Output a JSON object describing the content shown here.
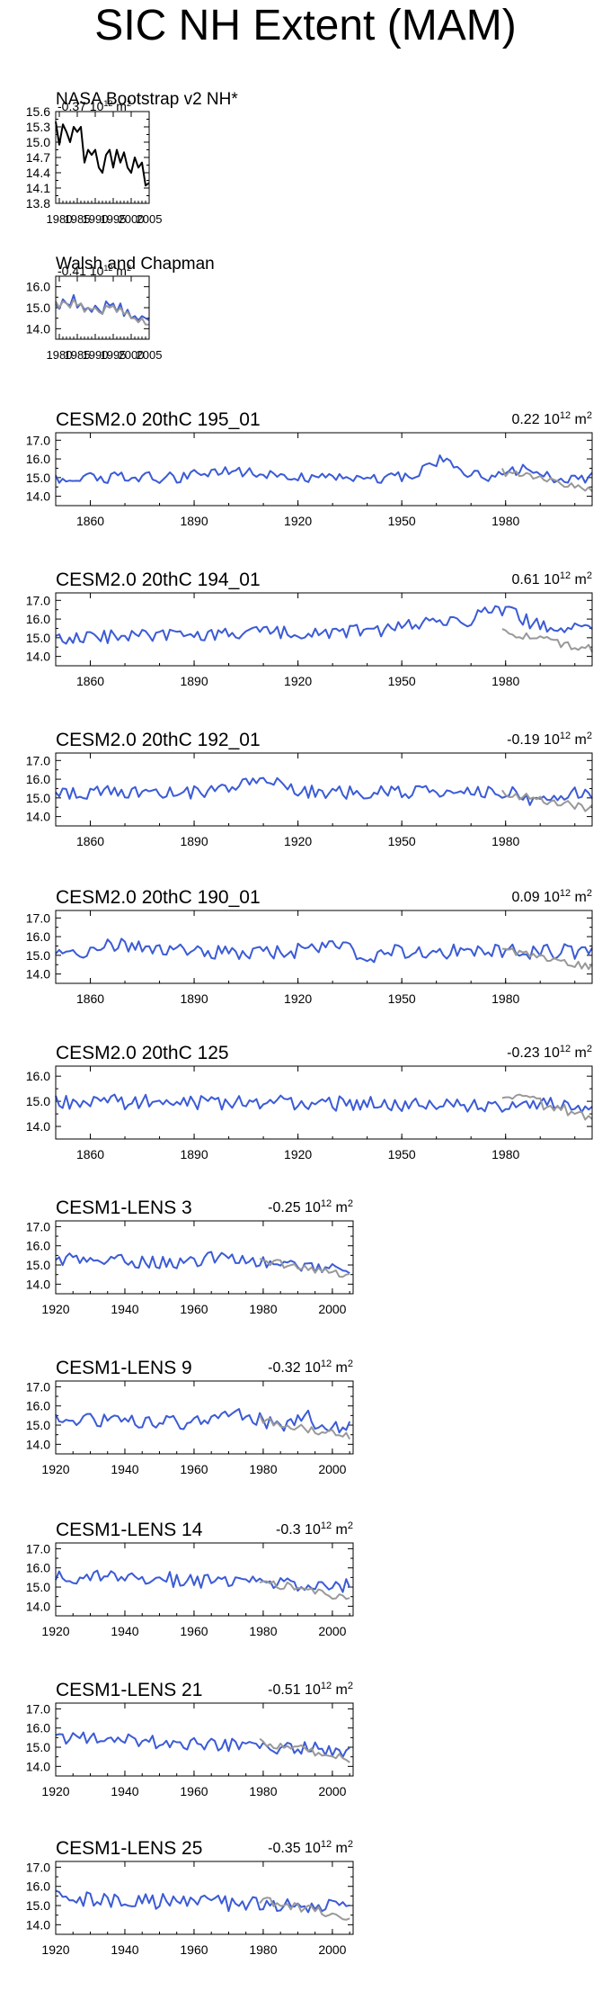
{
  "page_title": "SIC NH Extent (MAM)",
  "colors": {
    "model": "#3b5bd6",
    "obs": "#999999",
    "obs_only": "#000000",
    "frame": "#000000"
  },
  "units_label": "10^12 m^2",
  "chart_data": [
    {
      "id": "nasa",
      "type": "line",
      "title": "NASA Bootstrap v2 NH*",
      "trend": "-0.37 10^12 m^2",
      "trend_value": "-0.37",
      "xlim": [
        1979,
        2005
      ],
      "ylim": [
        13.8,
        15.6
      ],
      "yticks": [
        13.8,
        14.1,
        14.4,
        14.7,
        15.0,
        15.3,
        15.6
      ],
      "xticks": [
        1980,
        1985,
        1990,
        1995,
        2000,
        2005
      ],
      "series": [
        {
          "name": "NASA Bootstrap v2 NH*",
          "style": "obs_only",
          "x0": 1979,
          "values": [
            15.4,
            14.95,
            15.35,
            15.2,
            15.0,
            15.3,
            15.2,
            15.3,
            14.6,
            14.85,
            14.75,
            14.85,
            14.5,
            14.4,
            14.75,
            14.85,
            14.5,
            14.85,
            14.6,
            14.8,
            14.5,
            14.4,
            14.7,
            14.5,
            14.6,
            14.15,
            14.2
          ]
        }
      ]
    },
    {
      "id": "walsh",
      "type": "line",
      "title": "Walsh and Chapman",
      "trend": "-0.41 10^12 m^2",
      "trend_value": "-0.41",
      "xlim": [
        1979,
        2005
      ],
      "ylim": [
        13.5,
        16.5
      ],
      "yticks": [
        14.0,
        15.0,
        16.0
      ],
      "xticks": [
        1980,
        1985,
        1990,
        1995,
        2000,
        2005
      ],
      "series": [
        {
          "name": "Walsh and Chapman",
          "style": "model",
          "x0": 1979,
          "values": [
            15.2,
            14.95,
            15.4,
            15.2,
            15.1,
            15.6,
            15.0,
            15.2,
            14.9,
            15.0,
            14.8,
            15.1,
            14.9,
            14.7,
            15.3,
            15.1,
            15.2,
            14.8,
            15.2,
            14.6,
            14.9,
            14.5,
            14.6,
            14.4,
            14.6,
            14.5,
            14.4
          ]
        },
        {
          "name": "observations",
          "style": "obs",
          "x0": 1979,
          "values": [
            15.3,
            15.0,
            15.3,
            15.2,
            15.0,
            15.4,
            15.1,
            15.2,
            14.8,
            15.0,
            14.9,
            15.0,
            14.8,
            14.7,
            15.1,
            15.0,
            15.1,
            14.8,
            15.0,
            14.7,
            14.8,
            14.5,
            14.5,
            14.3,
            14.5,
            14.2,
            14.2
          ]
        }
      ]
    },
    {
      "id": "c195",
      "type": "line",
      "title": "CESM2.0 20thC 195_01",
      "trend": "0.22 10^12 m^2",
      "trend_value": "0.22",
      "xlim": [
        1850,
        2005
      ],
      "ylim": [
        13.5,
        17.4
      ],
      "yticks": [
        14.0,
        15.0,
        16.0,
        17.0
      ],
      "xticks": [
        1860,
        1890,
        1920,
        1950,
        1980
      ],
      "series": [
        {
          "name": "CESM2.0 20thC 195_01",
          "style": "model",
          "gen": {
            "seed": 195,
            "n": 156,
            "x0": 1850,
            "base": 15.0,
            "amp": 0.3,
            "bumps": [
              [
                1900,
                0.3,
                10
              ],
              [
                1962,
                1.0,
                6
              ],
              [
                1985,
                0.4,
                6
              ]
            ],
            "trend": 0
          }
        },
        {
          "name": "observations",
          "style": "obs",
          "gen": {
            "seed": 9195,
            "n": 27,
            "x0": 1979,
            "base": 15.3,
            "amp": 0.22,
            "bumps": [],
            "trend": -0.035
          }
        }
      ]
    },
    {
      "id": "c194",
      "type": "line",
      "title": "CESM2.0 20thC 194_01",
      "trend": "0.61 10^12 m^2",
      "trend_value": "0.61",
      "xlim": [
        1850,
        2005
      ],
      "ylim": [
        13.5,
        17.4
      ],
      "yticks": [
        14.0,
        15.0,
        16.0,
        17.0
      ],
      "xticks": [
        1860,
        1890,
        1920,
        1950,
        1980
      ],
      "series": [
        {
          "name": "CESM2.0 20thC 194_01",
          "style": "model",
          "gen": {
            "seed": 194,
            "n": 156,
            "x0": 1850,
            "base": 15.0,
            "amp": 0.35,
            "bumps": [
              [
                1960,
                0.4,
                10
              ],
              [
                1978,
                1.0,
                8
              ]
            ],
            "trend": 0.004
          }
        },
        {
          "name": "observations",
          "style": "obs",
          "gen": {
            "seed": 9194,
            "n": 27,
            "x0": 1979,
            "base": 15.3,
            "amp": 0.22,
            "bumps": [],
            "trend": -0.035
          }
        }
      ]
    },
    {
      "id": "c192",
      "type": "line",
      "title": "CESM2.0 20thC 192_01",
      "trend": "-0.19 10^12 m^2",
      "trend_value": "-0.19",
      "xlim": [
        1850,
        2005
      ],
      "ylim": [
        13.5,
        17.4
      ],
      "yticks": [
        14.0,
        15.0,
        16.0,
        17.0
      ],
      "xticks": [
        1860,
        1890,
        1920,
        1950,
        1980
      ],
      "series": [
        {
          "name": "CESM2.0 20thC 192_01",
          "style": "model",
          "gen": {
            "seed": 192,
            "n": 156,
            "x0": 1850,
            "base": 15.3,
            "amp": 0.35,
            "bumps": [
              [
                1910,
                0.6,
                8
              ],
              [
                1990,
                -0.5,
                5
              ]
            ],
            "trend": 0
          }
        },
        {
          "name": "observations",
          "style": "obs",
          "gen": {
            "seed": 9192,
            "n": 27,
            "x0": 1979,
            "base": 15.3,
            "amp": 0.22,
            "bumps": [],
            "trend": -0.035
          }
        }
      ]
    },
    {
      "id": "c190",
      "type": "line",
      "title": "CESM2.0 20thC 190_01",
      "trend": "0.09 10^12 m^2",
      "trend_value": "0.09",
      "xlim": [
        1850,
        2005
      ],
      "ylim": [
        13.5,
        17.4
      ],
      "yticks": [
        14.0,
        15.0,
        16.0,
        17.0
      ],
      "xticks": [
        1860,
        1890,
        1920,
        1950,
        1980
      ],
      "series": [
        {
          "name": "CESM2.0 20thC 190_01",
          "style": "model",
          "gen": {
            "seed": 190,
            "n": 156,
            "x0": 1850,
            "base": 15.2,
            "amp": 0.4,
            "bumps": [
              [
                1870,
                0.4,
                8
              ],
              [
                1930,
                0.3,
                8
              ],
              [
                1940,
                -0.5,
                5
              ]
            ],
            "trend": 0
          }
        },
        {
          "name": "observations",
          "style": "obs",
          "gen": {
            "seed": 9190,
            "n": 27,
            "x0": 1979,
            "base": 15.3,
            "amp": 0.22,
            "bumps": [],
            "trend": -0.035
          }
        }
      ]
    },
    {
      "id": "c125",
      "type": "line",
      "title": "CESM2.0 20thC 125",
      "trend": "-0.23 10^12 m^2",
      "trend_value": "-0.23",
      "xlim": [
        1850,
        2005
      ],
      "ylim": [
        13.5,
        16.4
      ],
      "yticks": [
        14.0,
        15.0,
        16.0
      ],
      "xticks": [
        1860,
        1890,
        1920,
        1950,
        1980
      ],
      "series": [
        {
          "name": "CESM2.0 20thC 125",
          "style": "model",
          "gen": {
            "seed": 125,
            "n": 156,
            "x0": 1850,
            "base": 15.0,
            "amp": 0.3,
            "bumps": [],
            "trend": -0.001
          }
        },
        {
          "name": "observations",
          "style": "obs",
          "gen": {
            "seed": 9125,
            "n": 27,
            "x0": 1979,
            "base": 15.3,
            "amp": 0.22,
            "bumps": [],
            "trend": -0.035
          }
        }
      ]
    },
    {
      "id": "l3",
      "type": "line",
      "title": "CESM1-LENS 3",
      "trend": "-0.25 10^12 m^2",
      "trend_value": "-0.25",
      "xlim": [
        1920,
        2006
      ],
      "ylim": [
        13.5,
        17.3
      ],
      "yticks": [
        14.0,
        15.0,
        16.0,
        17.0
      ],
      "xticks": [
        1920,
        1940,
        1960,
        1980,
        2000
      ],
      "series": [
        {
          "name": "CESM1-LENS 3",
          "style": "model",
          "gen": {
            "seed": 3,
            "n": 86,
            "x0": 1920,
            "base": 15.3,
            "amp": 0.35,
            "bumps": [
              [
                1970,
                0.4,
                8
              ]
            ],
            "trend": -0.005
          }
        },
        {
          "name": "observations",
          "style": "obs",
          "gen": {
            "seed": 903,
            "n": 27,
            "x0": 1979,
            "base": 15.3,
            "amp": 0.22,
            "bumps": [],
            "trend": -0.035
          }
        }
      ]
    },
    {
      "id": "l9",
      "type": "line",
      "title": "CESM1-LENS 9",
      "trend": "-0.32 10^12 m^2",
      "trend_value": "-0.32",
      "xlim": [
        1920,
        2006
      ],
      "ylim": [
        13.5,
        17.3
      ],
      "yticks": [
        14.0,
        15.0,
        16.0,
        17.0
      ],
      "xticks": [
        1920,
        1940,
        1960,
        1980,
        2000
      ],
      "series": [
        {
          "name": "CESM1-LENS 9",
          "style": "model",
          "gen": {
            "seed": 9,
            "n": 86,
            "x0": 1920,
            "base": 15.3,
            "amp": 0.35,
            "bumps": [
              [
                1972,
                0.6,
                8
              ],
              [
                1992,
                0.6,
                3
              ]
            ],
            "trend": -0.005
          }
        },
        {
          "name": "observations",
          "style": "obs",
          "gen": {
            "seed": 909,
            "n": 27,
            "x0": 1979,
            "base": 15.3,
            "amp": 0.22,
            "bumps": [],
            "trend": -0.035
          }
        }
      ]
    },
    {
      "id": "l14",
      "type": "line",
      "title": "CESM1-LENS 14",
      "trend": "-0.3 10^12 m^2",
      "trend_value": "-0.3",
      "xlim": [
        1920,
        2006
      ],
      "ylim": [
        13.5,
        17.3
      ],
      "yticks": [
        14.0,
        15.0,
        16.0,
        17.0
      ],
      "xticks": [
        1920,
        1940,
        1960,
        1980,
        2000
      ],
      "series": [
        {
          "name": "CESM1-LENS 14",
          "style": "model",
          "gen": {
            "seed": 14,
            "n": 86,
            "x0": 1920,
            "base": 15.6,
            "amp": 0.4,
            "bumps": [],
            "trend": -0.006
          }
        },
        {
          "name": "observations",
          "style": "obs",
          "gen": {
            "seed": 914,
            "n": 27,
            "x0": 1979,
            "base": 15.3,
            "amp": 0.22,
            "bumps": [],
            "trend": -0.035
          }
        }
      ]
    },
    {
      "id": "l21",
      "type": "line",
      "title": "CESM1-LENS 21",
      "trend": "-0.51 10^12 m^2",
      "trend_value": "-0.51",
      "xlim": [
        1920,
        2006
      ],
      "ylim": [
        13.5,
        17.3
      ],
      "yticks": [
        14.0,
        15.0,
        16.0,
        17.0
      ],
      "xticks": [
        1920,
        1940,
        1960,
        1980,
        2000
      ],
      "series": [
        {
          "name": "CESM1-LENS 21",
          "style": "model",
          "gen": {
            "seed": 21,
            "n": 86,
            "x0": 1920,
            "base": 15.5,
            "amp": 0.35,
            "bumps": [],
            "trend": -0.008
          }
        },
        {
          "name": "observations",
          "style": "obs",
          "gen": {
            "seed": 921,
            "n": 27,
            "x0": 1979,
            "base": 15.3,
            "amp": 0.22,
            "bumps": [],
            "trend": -0.035
          }
        }
      ]
    },
    {
      "id": "l25",
      "type": "line",
      "title": "CESM1-LENS 25",
      "trend": "-0.35 10^12 m^2",
      "trend_value": "-0.35",
      "xlim": [
        1920,
        2006
      ],
      "ylim": [
        13.5,
        17.3
      ],
      "yticks": [
        14.0,
        15.0,
        16.0,
        17.0
      ],
      "xticks": [
        1920,
        1940,
        1960,
        1980,
        2000
      ],
      "series": [
        {
          "name": "CESM1-LENS 25",
          "style": "model",
          "gen": {
            "seed": 25,
            "n": 86,
            "x0": 1920,
            "base": 15.4,
            "amp": 0.4,
            "bumps": [],
            "trend": -0.006
          }
        },
        {
          "name": "observations",
          "style": "obs",
          "gen": {
            "seed": 925,
            "n": 27,
            "x0": 1979,
            "base": 15.3,
            "amp": 0.22,
            "bumps": [],
            "trend": -0.035
          }
        }
      ]
    }
  ]
}
